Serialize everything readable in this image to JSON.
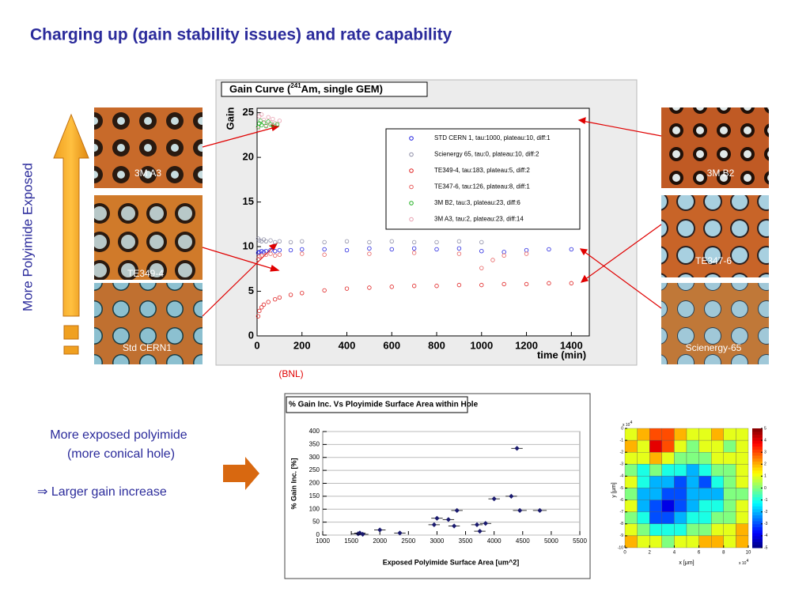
{
  "title": "Charging up (gain stability issues) and rate capability",
  "side_label": "More Polyimide Exposed",
  "source": "(BNL)",
  "photos_left": [
    "3M A3",
    "TE349-4",
    "Std CERN1"
  ],
  "photos_right": [
    "3M B2",
    "TE347-6",
    "Scienergy-65"
  ],
  "notes": [
    "More exposed polyimide",
    "(more conical hole)",
    "⇒  Larger gain increase"
  ],
  "chart_data": [
    {
      "type": "scatter",
      "title": "Gain Curve (",
      "title_sup": "241",
      "title_end": "Am, single GEM)",
      "xlabel": "time (min)",
      "ylabel": "Gain",
      "xlim": [
        0,
        1480
      ],
      "xticks": [
        0,
        200,
        400,
        600,
        800,
        1000,
        1200,
        1400
      ],
      "ylim": [
        0,
        25.5
      ],
      "yticks": [
        0,
        5,
        10,
        15,
        20,
        25
      ],
      "series": [
        {
          "name": "STD CERN 1, tau:1000, plateau:10, diff:1",
          "color": "#2020e0",
          "x": [
            5,
            10,
            20,
            30,
            40,
            60,
            80,
            100,
            150,
            200,
            300,
            400,
            500,
            600,
            700,
            800,
            900,
            1000,
            1100,
            1200,
            1300,
            1400
          ],
          "values": [
            9.3,
            9.4,
            9.5,
            9.4,
            9.5,
            9.6,
            9.5,
            9.6,
            9.6,
            9.7,
            9.7,
            9.6,
            9.8,
            9.7,
            9.8,
            9.7,
            9.8,
            9.5,
            9.4,
            9.6,
            9.7,
            9.7
          ]
        },
        {
          "name": "Scienergy 65, tau:0, plateau:10, diff:2",
          "color": "#9090a8",
          "x": [
            5,
            10,
            20,
            30,
            40,
            60,
            80,
            100,
            150,
            200,
            300,
            400,
            500,
            600,
            700,
            800,
            900,
            1000
          ],
          "values": [
            10.9,
            10.7,
            10.6,
            10.8,
            10.6,
            10.7,
            10.5,
            10.6,
            10.5,
            10.6,
            10.5,
            10.6,
            10.5,
            10.6,
            10.5,
            10.5,
            10.6,
            10.5
          ]
        },
        {
          "name": "TE349-4, tau:183, plateau:5, diff:2",
          "color": "#e02020",
          "x": [
            5,
            10,
            20,
            30,
            50,
            80,
            100,
            150,
            200,
            300,
            400,
            500,
            600,
            700,
            800,
            900,
            1000,
            1100,
            1200,
            1300,
            1400
          ],
          "values": [
            2.2,
            2.8,
            3.2,
            3.5,
            3.8,
            4.1,
            4.3,
            4.6,
            4.8,
            5.1,
            5.3,
            5.4,
            5.5,
            5.6,
            5.6,
            5.7,
            5.7,
            5.8,
            5.8,
            5.9,
            5.9
          ]
        },
        {
          "name": "TE347-6, tau:126, plateau:8, diff:1",
          "color": "#e86060",
          "x": [
            5,
            10,
            20,
            40,
            60,
            80,
            100,
            200,
            300,
            500,
            700,
            900,
            1000,
            1050,
            1100,
            1200
          ],
          "values": [
            8.6,
            8.9,
            9.0,
            9.1,
            9.2,
            9.0,
            9.1,
            9.2,
            9.1,
            9.2,
            9.3,
            9.2,
            7.6,
            8.5,
            9.0,
            9.2
          ]
        },
        {
          "name": "3M B2, tau:3, plateau:23, diff:6",
          "color": "#20b020",
          "x": [
            5,
            10,
            15,
            20,
            30,
            40,
            50,
            60,
            70,
            80,
            90
          ],
          "values": [
            23.4,
            23.8,
            24.1,
            23.6,
            23.9,
            23.5,
            24.0,
            23.7,
            23.6,
            23.8,
            23.7
          ]
        },
        {
          "name": "3M A3, tau:2, plateau:23, diff:14",
          "color": "#e8a0b0",
          "x": [
            5,
            10,
            20,
            30,
            40,
            50,
            60,
            70,
            80,
            100
          ],
          "values": [
            23.2,
            24.6,
            24.8,
            24.2,
            23.6,
            24.5,
            23.9,
            24.3,
            23.8,
            24.1
          ]
        }
      ]
    },
    {
      "type": "errorbar",
      "title": "% Gain Inc. Vs Ployimide Surface Area within Hole",
      "xlabel": "Exposed Polyimide Surface Area [um^2]",
      "ylabel": "% Gain Inc. [%]",
      "xlim": [
        1000,
        5500
      ],
      "xticks": [
        1000,
        1500,
        2000,
        2500,
        3000,
        3500,
        4000,
        4500,
        5000,
        5500
      ],
      "ylim": [
        0,
        400
      ],
      "yticks": [
        0,
        50,
        100,
        150,
        200,
        250,
        300,
        350,
        400
      ],
      "color": "#1a1a6e",
      "grid": true,
      "x": [
        1620,
        1650,
        1700,
        2000,
        2350,
        2950,
        3000,
        3200,
        3300,
        3350,
        3700,
        3750,
        3850,
        4000,
        4300,
        4400,
        4450,
        4800
      ],
      "values": [
        5,
        8,
        3,
        20,
        8,
        40,
        65,
        60,
        35,
        95,
        40,
        15,
        45,
        140,
        150,
        335,
        95,
        95
      ],
      "xerr": [
        120,
        100,
        100,
        100,
        100,
        100,
        100,
        100,
        100,
        100,
        100,
        100,
        100,
        100,
        100,
        100,
        120,
        120
      ]
    },
    {
      "type": "heatmap",
      "xlabel": "x [μm]",
      "ylabel": "y [μm]",
      "exp_label": "x 10",
      "exp_sup": "4",
      "xlim": [
        0,
        10
      ],
      "xticks": [
        0,
        2,
        4,
        6,
        8,
        10
      ],
      "ylim": [
        -10,
        0
      ],
      "yticks": [
        0,
        -1,
        -2,
        -3,
        -4,
        -5,
        -6,
        -7,
        -8,
        -9,
        -10
      ],
      "zlim": [
        -5,
        5
      ],
      "zticks": [
        5,
        4,
        3,
        2,
        1,
        0,
        -1,
        -2,
        -3,
        -4,
        -5
      ],
      "z": [
        [
          1,
          2,
          3,
          3,
          2,
          1,
          1,
          2,
          1,
          1
        ],
        [
          2,
          1,
          4,
          3,
          1,
          0,
          1,
          1,
          0,
          1
        ],
        [
          1,
          1,
          2,
          1,
          0,
          0,
          0,
          1,
          1,
          1
        ],
        [
          0,
          -1,
          0,
          -1,
          -1,
          -2,
          -1,
          0,
          0,
          1
        ],
        [
          1,
          -1,
          -2,
          -2,
          -3,
          -2,
          -3,
          -1,
          0,
          1
        ],
        [
          0,
          -2,
          -2,
          -3,
          -3,
          -2,
          -2,
          -2,
          0,
          0
        ],
        [
          1,
          -2,
          -3,
          -4,
          -3,
          -2,
          -1,
          -1,
          0,
          1
        ],
        [
          0,
          -1,
          -3,
          -3,
          -2,
          -1,
          -1,
          0,
          0,
          1
        ],
        [
          1,
          0,
          -1,
          -1,
          -1,
          0,
          0,
          1,
          1,
          2
        ],
        [
          2,
          1,
          1,
          0,
          1,
          1,
          2,
          2,
          1,
          2
        ]
      ]
    }
  ]
}
